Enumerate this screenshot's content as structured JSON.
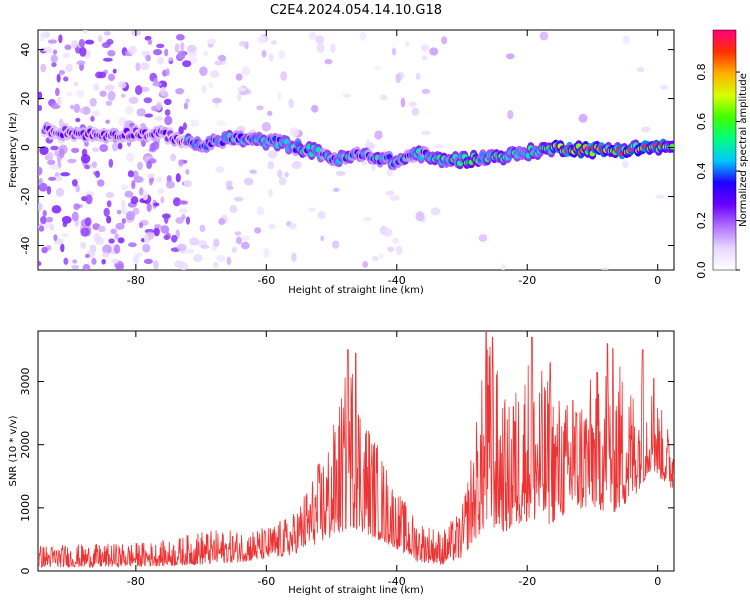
{
  "title": "C2E4.2024.054.14.10.G18",
  "chart_data": [
    {
      "type": "heatmap",
      "name": "spectrogram",
      "xlabel": "Height of straight line (km)",
      "ylabel": "Frequency (Hz)",
      "xlim": [
        -95,
        2.5
      ],
      "ylim": [
        -50,
        48
      ],
      "xticks": [
        -80,
        -60,
        -40,
        -20,
        0
      ],
      "yticks": [
        -40,
        -20,
        0,
        20,
        40
      ],
      "ridge_frequency_hz": [
        {
          "x": -93,
          "y": 7
        },
        {
          "x": -90,
          "y": 6
        },
        {
          "x": -85,
          "y": 5
        },
        {
          "x": -80,
          "y": 6
        },
        {
          "x": -75,
          "y": 5
        },
        {
          "x": -72,
          "y": 2
        },
        {
          "x": -69,
          "y": 1
        },
        {
          "x": -66,
          "y": 4
        },
        {
          "x": -62,
          "y": 3
        },
        {
          "x": -58,
          "y": 2
        },
        {
          "x": -55,
          "y": 0
        },
        {
          "x": -52,
          "y": -2
        },
        {
          "x": -49,
          "y": -5
        },
        {
          "x": -46,
          "y": -3
        },
        {
          "x": -43,
          "y": -4
        },
        {
          "x": -40,
          "y": -6
        },
        {
          "x": -37,
          "y": -2
        },
        {
          "x": -34,
          "y": -5
        },
        {
          "x": -30,
          "y": -5
        },
        {
          "x": -26,
          "y": -4
        },
        {
          "x": -22,
          "y": -3
        },
        {
          "x": -18,
          "y": -1
        },
        {
          "x": -14,
          "y": 0
        },
        {
          "x": -10,
          "y": -1
        },
        {
          "x": -6,
          "y": -1
        },
        {
          "x": -2,
          "y": 0
        },
        {
          "x": 2,
          "y": 0
        }
      ],
      "colorbar": {
        "label": "Normalized spectral amplitude",
        "range": [
          0,
          0.97
        ],
        "ticks": [
          0.0,
          0.2,
          0.4,
          0.6,
          0.8
        ],
        "tick_labels": [
          "0.0",
          "0.2",
          "0.4",
          "0.6",
          "0.8"
        ],
        "colors": [
          "#ffffff",
          "#e8d8ff",
          "#b070ff",
          "#6a00ff",
          "#2000ff",
          "#00c8ff",
          "#00ff80",
          "#40ff00",
          "#d8ff00",
          "#ffb000",
          "#ff3000",
          "#ff0080"
        ]
      }
    },
    {
      "type": "line",
      "name": "snr",
      "xlabel": "Height of straight line (km)",
      "ylabel": "SNR (10 * v/v)",
      "xlim": [
        -95,
        2.5
      ],
      "ylim": [
        0,
        3800
      ],
      "xticks": [
        -80,
        -60,
        -40,
        -20,
        0
      ],
      "yticks": [
        0,
        1000,
        2000,
        3000
      ],
      "color": "#ee3333",
      "envelope": [
        {
          "x": -95,
          "lo": 60,
          "hi": 420
        },
        {
          "x": -85,
          "lo": 60,
          "hi": 430
        },
        {
          "x": -75,
          "lo": 80,
          "hi": 480
        },
        {
          "x": -70,
          "lo": 100,
          "hi": 650
        },
        {
          "x": -65,
          "lo": 130,
          "hi": 650
        },
        {
          "x": -60,
          "lo": 180,
          "hi": 700
        },
        {
          "x": -56,
          "lo": 250,
          "hi": 900
        },
        {
          "x": -53,
          "lo": 400,
          "hi": 1500
        },
        {
          "x": -50,
          "lo": 500,
          "hi": 2200
        },
        {
          "x": -47,
          "lo": 700,
          "hi": 3500
        },
        {
          "x": -45,
          "lo": 600,
          "hi": 2600
        },
        {
          "x": -42,
          "lo": 450,
          "hi": 1800
        },
        {
          "x": -40,
          "lo": 350,
          "hi": 1300
        },
        {
          "x": -37,
          "lo": 150,
          "hi": 850
        },
        {
          "x": -33,
          "lo": 100,
          "hi": 650
        },
        {
          "x": -30,
          "lo": 200,
          "hi": 1000
        },
        {
          "x": -28,
          "lo": 500,
          "hi": 2300
        },
        {
          "x": -26,
          "lo": 700,
          "hi": 3800
        },
        {
          "x": -23,
          "lo": 600,
          "hi": 2600
        },
        {
          "x": -20,
          "lo": 800,
          "hi": 3500
        },
        {
          "x": -17,
          "lo": 700,
          "hi": 3100
        },
        {
          "x": -14,
          "lo": 900,
          "hi": 2700
        },
        {
          "x": -10,
          "lo": 1000,
          "hi": 3100
        },
        {
          "x": -7,
          "lo": 900,
          "hi": 3600
        },
        {
          "x": -4,
          "lo": 1100,
          "hi": 3000
        },
        {
          "x": -1,
          "lo": 1600,
          "hi": 3000
        },
        {
          "x": 2,
          "lo": 1300,
          "hi": 2200
        }
      ],
      "peaks": [
        {
          "x": -47.5,
          "y": 3500
        },
        {
          "x": -46.3,
          "y": 3450
        },
        {
          "x": -26.3,
          "y": 3820
        },
        {
          "x": -25.3,
          "y": 3700
        },
        {
          "x": -22.1,
          "y": 2600
        },
        {
          "x": -19.3,
          "y": 3700
        },
        {
          "x": -16.5,
          "y": 3300
        },
        {
          "x": -13.0,
          "y": 2700
        },
        {
          "x": -7.7,
          "y": 3600
        },
        {
          "x": -2.3,
          "y": 3500
        },
        {
          "x": -0.6,
          "y": 3050
        }
      ]
    }
  ]
}
